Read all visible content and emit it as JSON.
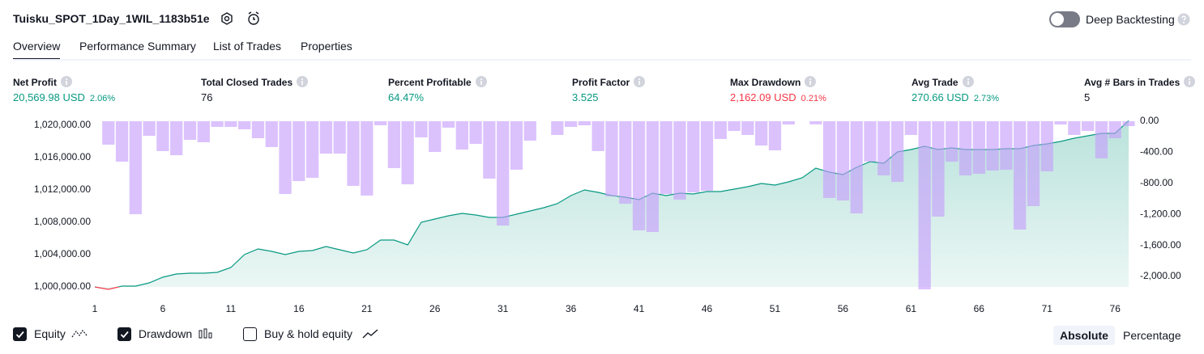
{
  "header": {
    "title": "Tuisku_SPOT_1Day_1WIL_1183b51e",
    "deep_backtesting": "Deep Backtesting",
    "deep_backtesting_on": false
  },
  "tabs": [
    "Overview",
    "Performance Summary",
    "List of Trades",
    "Properties"
  ],
  "active_tab": 0,
  "metrics": [
    {
      "label": "Net Profit",
      "value": "20,569.98 USD",
      "percent": "2.06%",
      "tone": "positive"
    },
    {
      "label": "Total Closed Trades",
      "value": "76",
      "tone": "neutral"
    },
    {
      "label": "Percent Profitable",
      "value": "64.47%",
      "tone": "positive"
    },
    {
      "label": "Profit Factor",
      "value": "3.525",
      "tone": "positive"
    },
    {
      "label": "Max Drawdown",
      "value": "2,162.09 USD",
      "percent": "0.21%",
      "tone": "negative"
    },
    {
      "label": "Avg Trade",
      "value": "270.66 USD",
      "percent": "2.73%",
      "tone": "positive"
    },
    {
      "label": "Avg # Bars in Trades",
      "value": "5",
      "tone": "neutral"
    }
  ],
  "chart_data": {
    "type": "combo",
    "x": [
      1,
      2,
      3,
      4,
      5,
      6,
      7,
      8,
      9,
      10,
      11,
      12,
      13,
      14,
      15,
      16,
      17,
      18,
      19,
      20,
      21,
      22,
      23,
      24,
      25,
      26,
      27,
      28,
      29,
      30,
      31,
      32,
      33,
      34,
      35,
      36,
      37,
      38,
      39,
      40,
      41,
      42,
      43,
      44,
      45,
      46,
      47,
      48,
      49,
      50,
      51,
      52,
      53,
      54,
      55,
      56,
      57,
      58,
      59,
      60,
      61,
      62,
      63,
      64,
      65,
      66,
      67,
      68,
      69,
      70,
      71,
      72,
      73,
      74,
      75,
      76,
      77
    ],
    "xlim": [
      1,
      77
    ],
    "xticks": [
      1,
      6,
      11,
      16,
      21,
      26,
      31,
      36,
      41,
      46,
      51,
      56,
      61,
      66,
      71,
      76
    ],
    "ylim": [
      999500,
      1020500
    ],
    "yticks": [
      {
        "value": 1000000,
        "label": "1,000,000.00"
      },
      {
        "value": 1004000,
        "label": "1,004,000.00"
      },
      {
        "value": 1008000,
        "label": "1,008,000.00"
      },
      {
        "value": 1012000,
        "label": "1,012,000.00"
      },
      {
        "value": 1016000,
        "label": "1,016,000.00"
      },
      {
        "value": 1020000,
        "label": "1,020,000.00"
      }
    ],
    "y2lim": [
      -2187.5,
      0
    ],
    "y2ticks": [
      {
        "value": 0,
        "label": "0.00"
      },
      {
        "value": -400,
        "label": "-400.00"
      },
      {
        "value": -800,
        "label": "-800.00"
      },
      {
        "value": -1200,
        "label": "-1,200.00"
      },
      {
        "value": -1600,
        "label": "-1,600.00"
      },
      {
        "value": -2000,
        "label": "-2,000.00"
      }
    ],
    "series": [
      {
        "name": "Equity",
        "type": "area",
        "visible": true,
        "color": "#089981",
        "color_below_start": "#f23645",
        "values": [
          1000000,
          999700,
          1000100,
          1000100,
          1000500,
          1001200,
          1001600,
          1001700,
          1001700,
          1001800,
          1002400,
          1004000,
          1004700,
          1004400,
          1004000,
          1004400,
          1004500,
          1005000,
          1004600,
          1004200,
          1004600,
          1005800,
          1005800,
          1005200,
          1008000,
          1008400,
          1008800,
          1009100,
          1008900,
          1008600,
          1008600,
          1009000,
          1009400,
          1009800,
          1010300,
          1011300,
          1012000,
          1011700,
          1011300,
          1011100,
          1010800,
          1011600,
          1011300,
          1011600,
          1011500,
          1011800,
          1011800,
          1012100,
          1012400,
          1012800,
          1012600,
          1013000,
          1013500,
          1014700,
          1014200,
          1013900,
          1014800,
          1015500,
          1015300,
          1016700,
          1017000,
          1017400,
          1017000,
          1017200,
          1017000,
          1017000,
          1017000,
          1017100,
          1017100,
          1017500,
          1017700,
          1018000,
          1018400,
          1018700,
          1019000,
          1019000,
          1020569.98
        ]
      },
      {
        "name": "Drawdown",
        "type": "bar",
        "axis": "y2",
        "visible": true,
        "color": "#c59cfc",
        "values": [
          0,
          -302,
          -521,
          -1198,
          -188,
          -385,
          -438,
          -240,
          -271,
          -73,
          -73,
          -104,
          -219,
          -333,
          -938,
          -771,
          -729,
          -417,
          -417,
          -833,
          -958,
          -52,
          -604,
          -813,
          -208,
          -396,
          -83,
          -365,
          -292,
          -740,
          -1344,
          -625,
          -250,
          0,
          -177,
          -73,
          -52,
          -385,
          -969,
          -1063,
          -1406,
          -1427,
          -938,
          -1010,
          -917,
          -896,
          -229,
          -125,
          -177,
          -313,
          -375,
          -42,
          0,
          -40,
          -990,
          -1021,
          -1188,
          -521,
          -698,
          -781,
          -177,
          -2167,
          -1229,
          -521,
          -698,
          -677,
          -635,
          -625,
          -1396,
          -1094,
          -646,
          -42,
          -177,
          -125,
          -479,
          -219,
          -63
        ]
      }
    ]
  },
  "footer": {
    "buy_hold": {
      "label": "Buy & hold equity",
      "checked": false
    },
    "modes": [
      "Absolute",
      "Percentage"
    ],
    "active_mode": 0
  }
}
